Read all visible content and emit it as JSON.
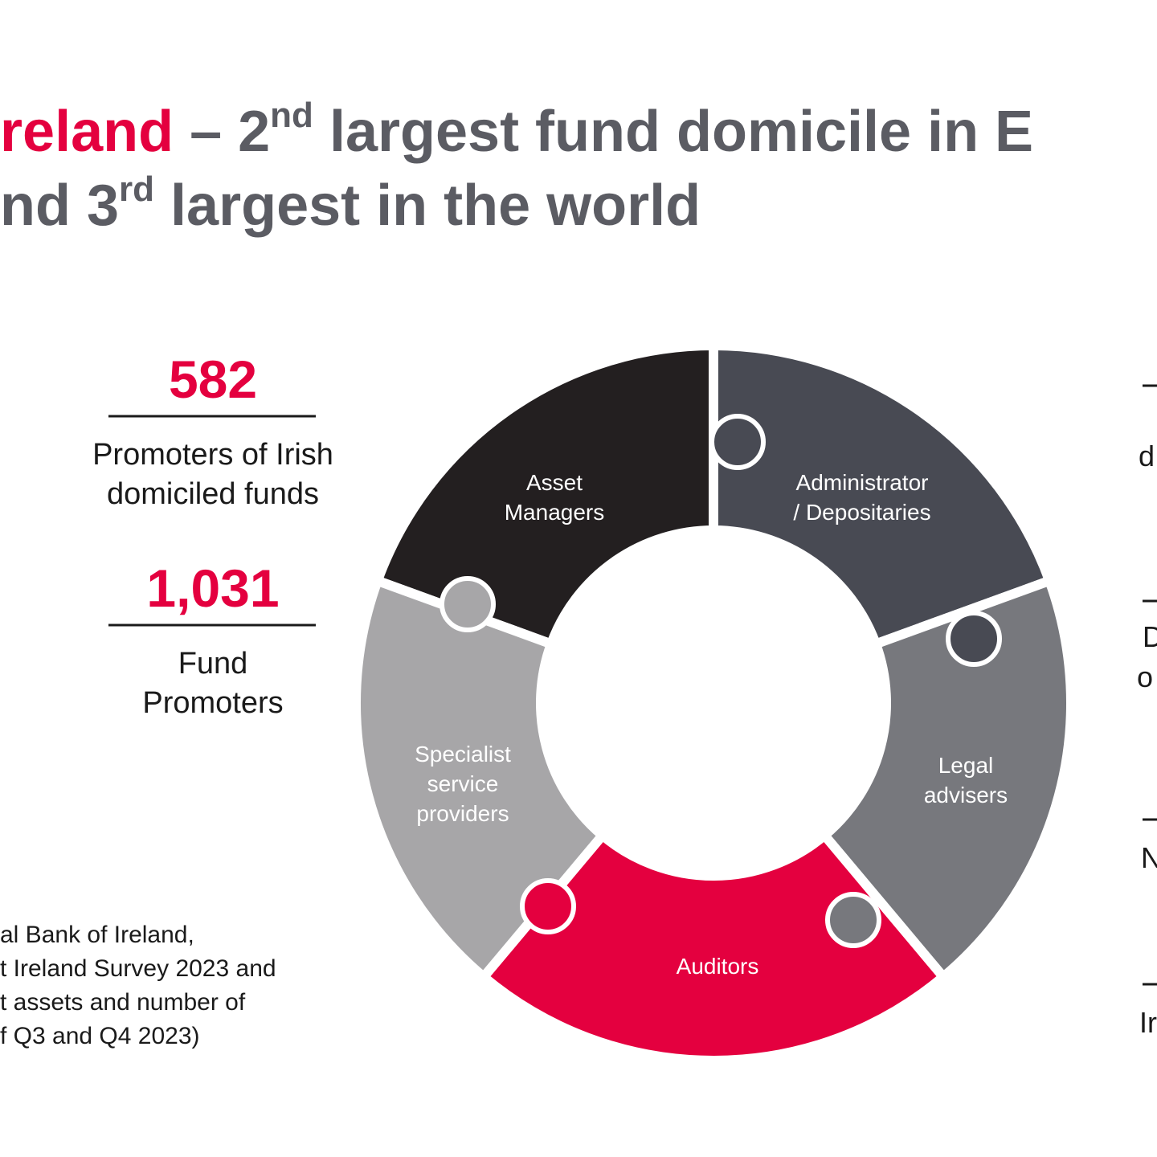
{
  "title": {
    "line1": {
      "highlight": "reland",
      "prefix": " – 2",
      "sup": "nd",
      "rest": " largest fund domicile in E"
    },
    "line2": {
      "prefix": "nd 3",
      "sup": "rd",
      "rest": " largest in the world"
    }
  },
  "stats": [
    {
      "value": "582",
      "label": [
        "Promoters of Irish",
        "domiciled funds"
      ]
    },
    {
      "value": "1,031",
      "label": [
        "Fund",
        "Promoters"
      ]
    }
  ],
  "ring": {
    "segments": [
      {
        "label": [
          "Asset",
          "Managers"
        ]
      },
      {
        "label": [
          "Administrator",
          "/ Depositaries"
        ]
      },
      {
        "label": [
          "Legal",
          "advisers"
        ]
      },
      {
        "label": [
          "Auditors"
        ]
      },
      {
        "label": [
          "Specialist",
          "service",
          "providers"
        ]
      }
    ]
  },
  "footnote": [
    "al Bank of Ireland,",
    "t Ireland Survey 2023 and",
    "t assets and number of",
    "f Q3 and Q4 2023)"
  ],
  "right_fragments": [
    "d",
    "D",
    "o",
    "N",
    "Ir"
  ]
}
